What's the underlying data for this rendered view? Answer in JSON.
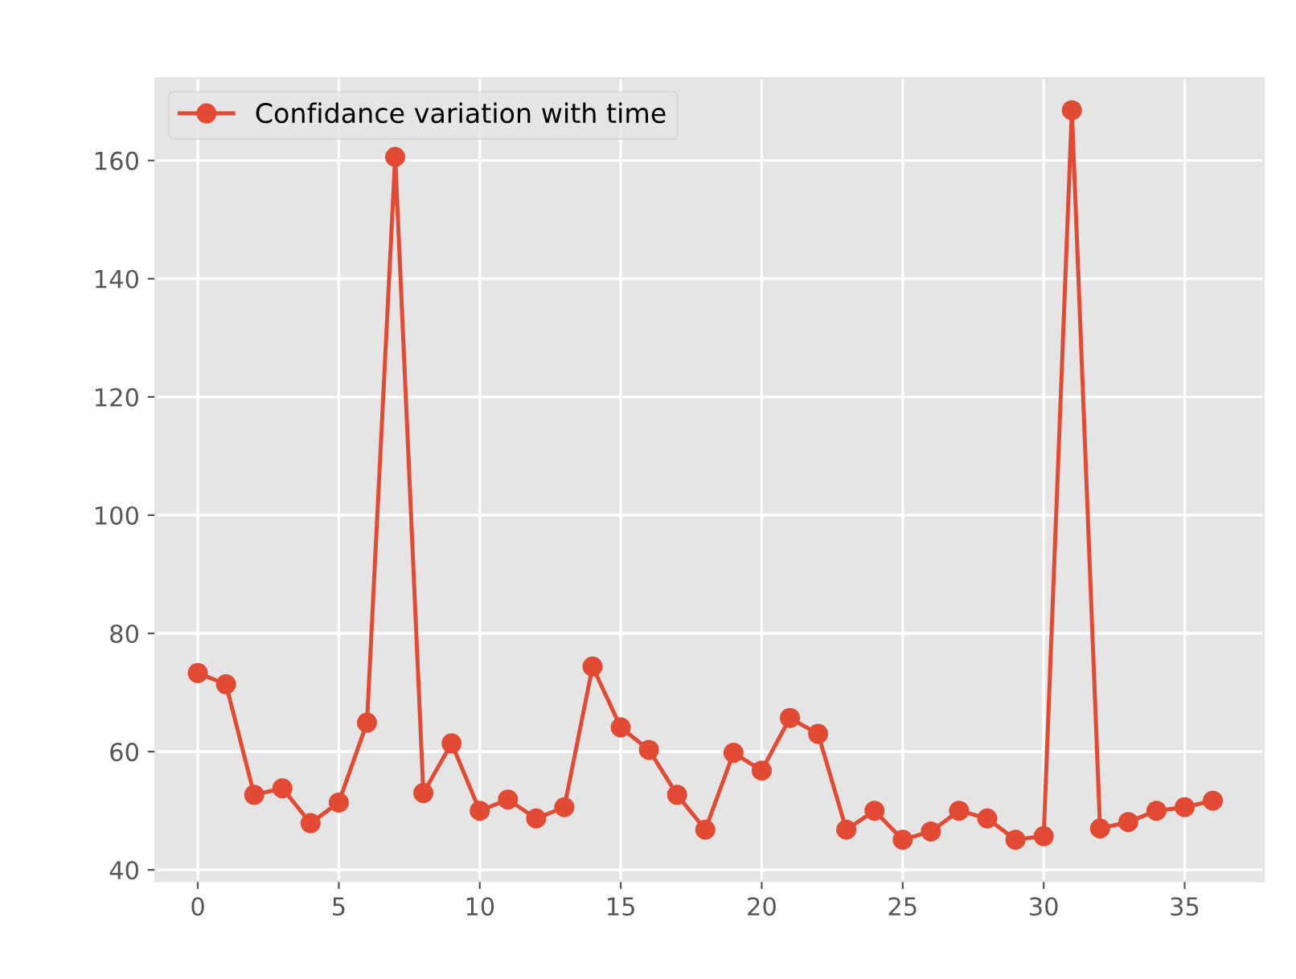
{
  "chart_data": {
    "type": "line",
    "x": [
      0,
      1,
      2,
      3,
      4,
      5,
      6,
      7,
      8,
      9,
      10,
      11,
      12,
      13,
      14,
      15,
      16,
      17,
      18,
      19,
      20,
      21,
      22,
      23,
      24,
      25,
      26,
      27,
      28,
      29,
      30,
      31,
      32,
      33,
      34,
      35,
      36
    ],
    "series": [
      {
        "name": "Confidance variation with time",
        "color": "#e24a33",
        "values": [
          73.3,
          71.4,
          52.7,
          53.8,
          47.9,
          51.4,
          64.9,
          160.6,
          53.0,
          61.4,
          50.0,
          51.9,
          48.7,
          50.6,
          74.4,
          64.1,
          60.3,
          52.7,
          46.8,
          59.8,
          56.8,
          65.7,
          63.0,
          46.8,
          50.0,
          45.1,
          46.5,
          50.0,
          48.7,
          45.1,
          45.7,
          168.5,
          47.0,
          48.1,
          50.0,
          50.6,
          51.7
        ]
      }
    ],
    "xlim": [
      -1.5,
      37.8
    ],
    "ylim": [
      38.1,
      173.9
    ],
    "xticks": [
      0,
      5,
      10,
      15,
      20,
      25,
      30,
      35
    ],
    "yticks": [
      40,
      60,
      80,
      100,
      120,
      140,
      160
    ],
    "grid": true,
    "legend": "top left",
    "marker": "circle",
    "line_style": "solid"
  }
}
